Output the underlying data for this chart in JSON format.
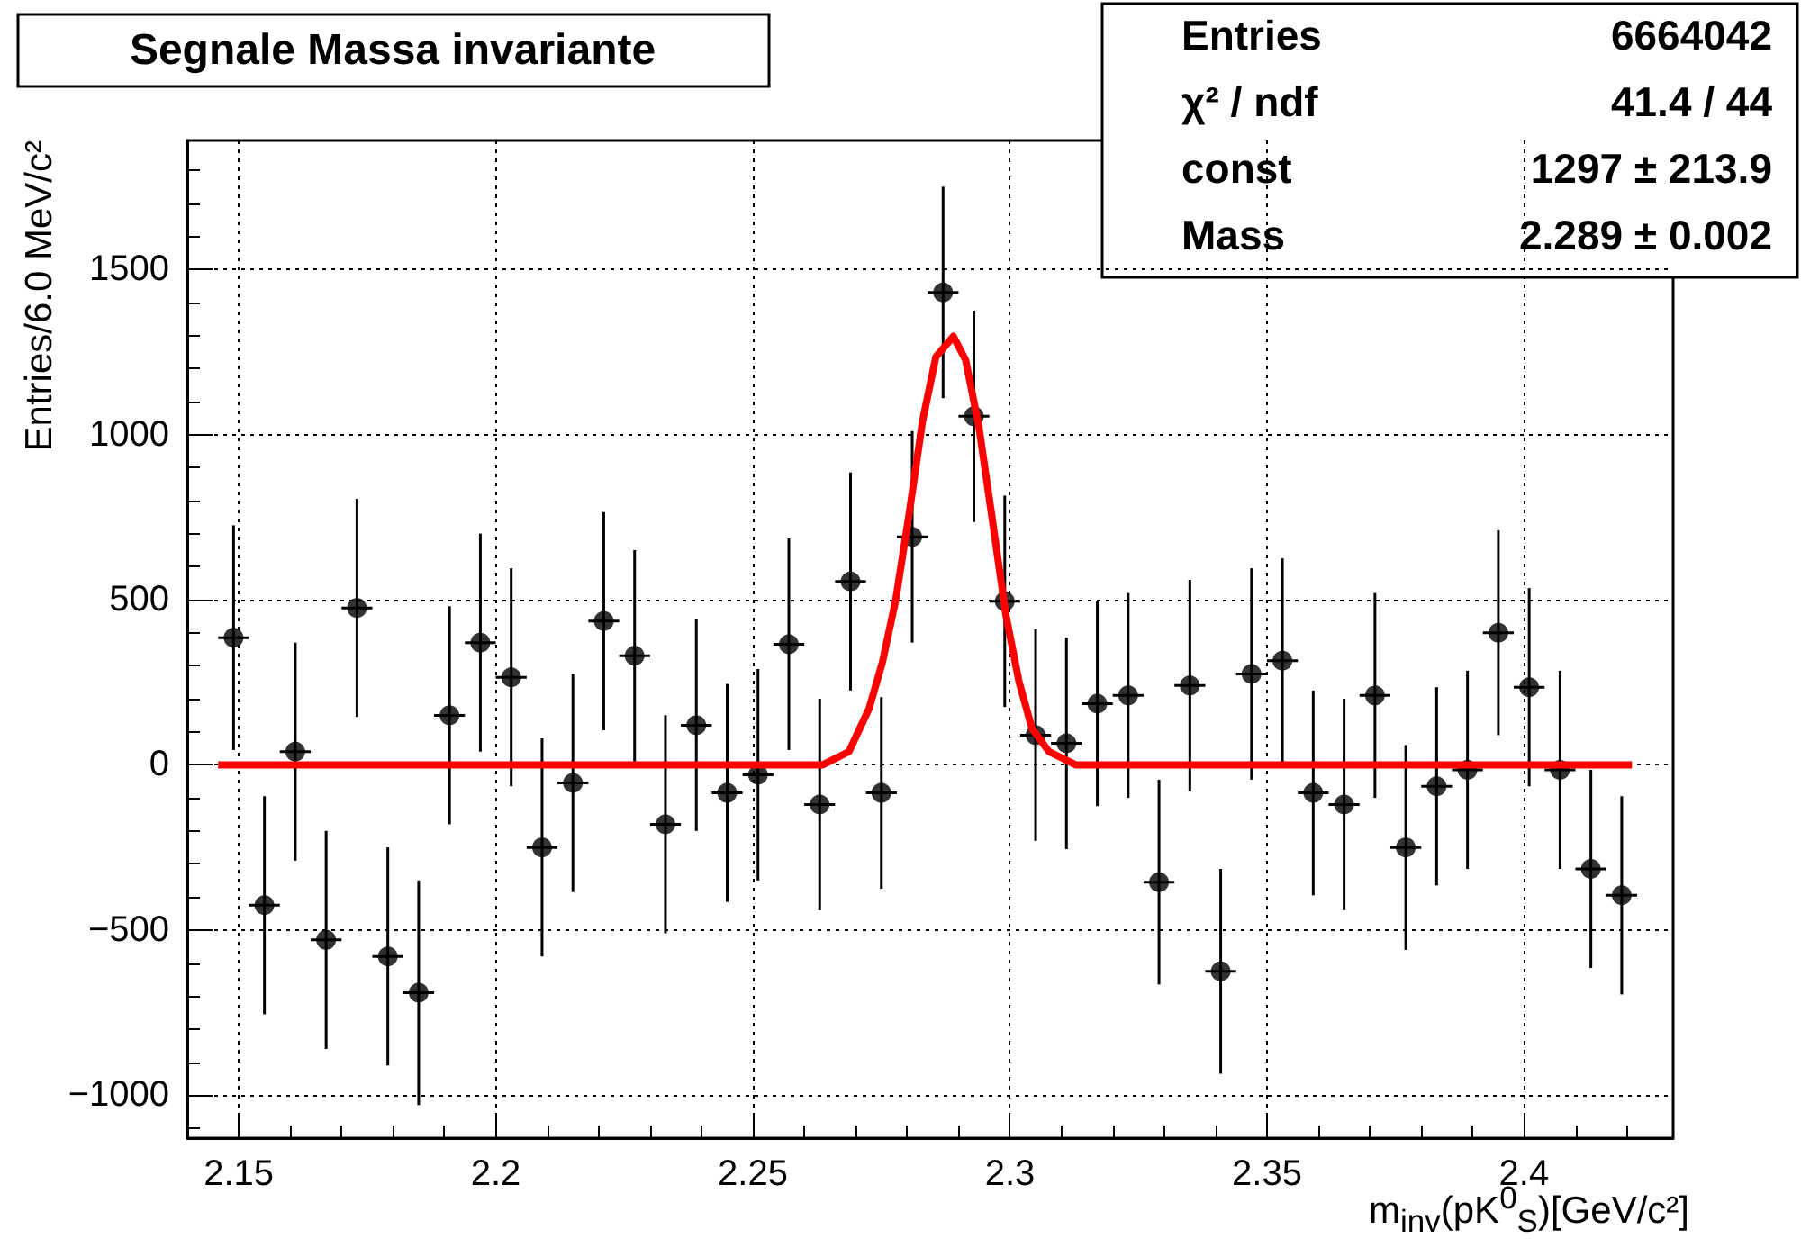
{
  "chart_data": {
    "type": "scatter",
    "title": "Segnale Massa invariante",
    "xlabel": "m$_{inv}$(pK$^{0}$$_{S}$)[GeV/c²]",
    "ylabel": "Entries/6.0 MeV/c²",
    "annotations": [
      "Entries",
      "6664042",
      "χ² / ndf",
      "41.4 / 44",
      "const",
      "1297 ± 213.9",
      "Mass",
      "2.289 ± 0.002"
    ],
    "xlim": [
      2.14,
      2.429
    ],
    "xticks": [
      2.15,
      2.2,
      2.25,
      2.3,
      2.35,
      2.4
    ],
    "ylim": [
      -1130,
      1890
    ],
    "yticks": [
      {
        "value": -1000,
        "label": "−1000"
      },
      {
        "value": -500,
        "label": "−500"
      },
      0,
      500,
      1000,
      1500
    ],
    "grid": true,
    "series": [
      {
        "marker": "circle",
        "color": "#000000",
        "x": [
          2.149,
          2.155,
          2.161,
          2.167,
          2.173,
          2.179,
          2.185,
          2.191,
          2.197,
          2.203,
          2.209,
          2.215,
          2.221,
          2.227,
          2.233,
          2.239,
          2.245,
          2.251,
          2.257,
          2.263,
          2.269,
          2.275,
          2.281,
          2.287,
          2.293,
          2.299,
          2.305,
          2.311,
          2.317,
          2.323,
          2.329,
          2.335,
          2.341,
          2.347,
          2.353,
          2.359,
          2.365,
          2.371,
          2.377,
          2.383,
          2.389,
          2.395,
          2.401,
          2.407,
          2.413,
          2.419
        ],
        "values": [
          385,
          -425,
          40,
          -530,
          475,
          -580,
          -690,
          150,
          370,
          265,
          -250,
          -55,
          435,
          330,
          -180,
          120,
          -85,
          -30,
          365,
          -120,
          555,
          -85,
          690,
          1430,
          1055,
          495,
          90,
          65,
          185,
          210,
          -355,
          240,
          -625,
          275,
          315,
          -85,
          -120,
          210,
          -250,
          -65,
          -15,
          400,
          235,
          -15,
          -315,
          -395
        ],
        "errors": [
          340,
          330,
          330,
          330,
          330,
          330,
          340,
          330,
          330,
          330,
          330,
          330,
          330,
          320,
          330,
          320,
          330,
          320,
          320,
          320,
          330,
          290,
          320,
          320,
          320,
          320,
          320,
          320,
          310,
          310,
          310,
          320,
          310,
          320,
          310,
          310,
          320,
          310,
          310,
          300,
          300,
          310,
          300,
          300,
          300,
          300
        ],
        "xerrors": [
          0.003,
          0.003,
          0.003,
          0.003,
          0.003,
          0.003,
          0.003,
          0.003,
          0.003,
          0.003,
          0.003,
          0.003,
          0.003,
          0.003,
          0.003,
          0.003,
          0.003,
          0.003,
          0.003,
          0.003,
          0.003,
          0.003,
          0.003,
          0.003,
          0.003,
          0.003,
          0.003,
          0.003,
          0.003,
          0.003,
          0.003,
          0.003,
          0.003,
          0.003,
          0.003,
          0.003,
          0.003,
          0.003,
          0.003,
          0.003,
          0.003,
          0.003,
          0.003,
          0.003,
          0.003,
          0.003
        ]
      },
      {
        "type": "line",
        "color": "#ff0000",
        "x": [
          2.146,
          2.2636,
          2.2687,
          2.2726,
          2.2752,
          2.2778,
          2.2804,
          2.283,
          2.2856,
          2.289,
          2.2914,
          2.294,
          2.2966,
          2.2992,
          2.3018,
          2.3043,
          2.3076,
          2.3128,
          2.421
        ],
        "values": [
          0,
          0,
          40,
          170,
          310,
          500,
          760,
          1040,
          1235,
          1297,
          1225,
          1020,
          740,
          455,
          250,
          110,
          40,
          0,
          0
        ]
      }
    ]
  }
}
